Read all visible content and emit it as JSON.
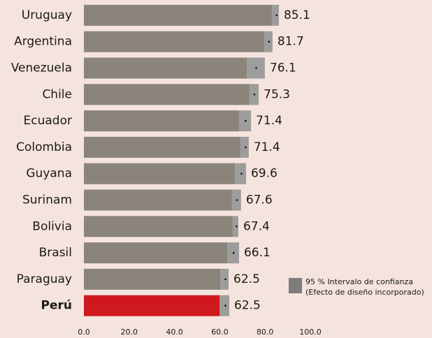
{
  "chart_data": {
    "type": "bar",
    "orientation": "horizontal",
    "categories": [
      "Uruguay",
      "Argentina",
      "Venezuela",
      "Chile",
      "Ecuador",
      "Colombia",
      "Guyana",
      "Surinam",
      "Bolivia",
      "Brasil",
      "Paraguay",
      "Perú"
    ],
    "values": [
      85.1,
      81.7,
      76.1,
      75.3,
      71.4,
      71.4,
      69.6,
      67.6,
      67.4,
      66.1,
      62.5,
      62.5
    ],
    "ci_low": [
      83.0,
      79.6,
      71.9,
      73.1,
      68.5,
      69.1,
      66.7,
      65.4,
      65.7,
      63.3,
      60.2,
      59.9
    ],
    "ci_high": [
      86.1,
      83.3,
      79.9,
      77.2,
      73.8,
      72.8,
      71.6,
      69.4,
      68.2,
      68.5,
      63.9,
      64.2
    ],
    "color": "#8a847a",
    "ci_color": "#9d9d9b",
    "colors": [
      "#8a847a",
      "#8a847a",
      "#8a847a",
      "#8a847a",
      "#8a847a",
      "#8a847a",
      "#8a847a",
      "#8a847a",
      "#8a847a",
      "#8a847a",
      "#8a847a",
      "#d0181f"
    ],
    "xlim": [
      0,
      100
    ],
    "xticks": [
      {
        "value": 0,
        "label": "0.0"
      },
      {
        "value": 20,
        "label": "20.0"
      },
      {
        "value": 40,
        "label": "40.0"
      },
      {
        "value": 60,
        "label": "60.0"
      },
      {
        "value": 80,
        "label": "80.0"
      },
      {
        "value": 100,
        "label": "100.0"
      }
    ],
    "legend": {
      "lines": [
        "95 % Intervalo de confianza",
        "(Efecto de diseño incorporado)"
      ],
      "color": "#7d7d7d"
    }
  }
}
